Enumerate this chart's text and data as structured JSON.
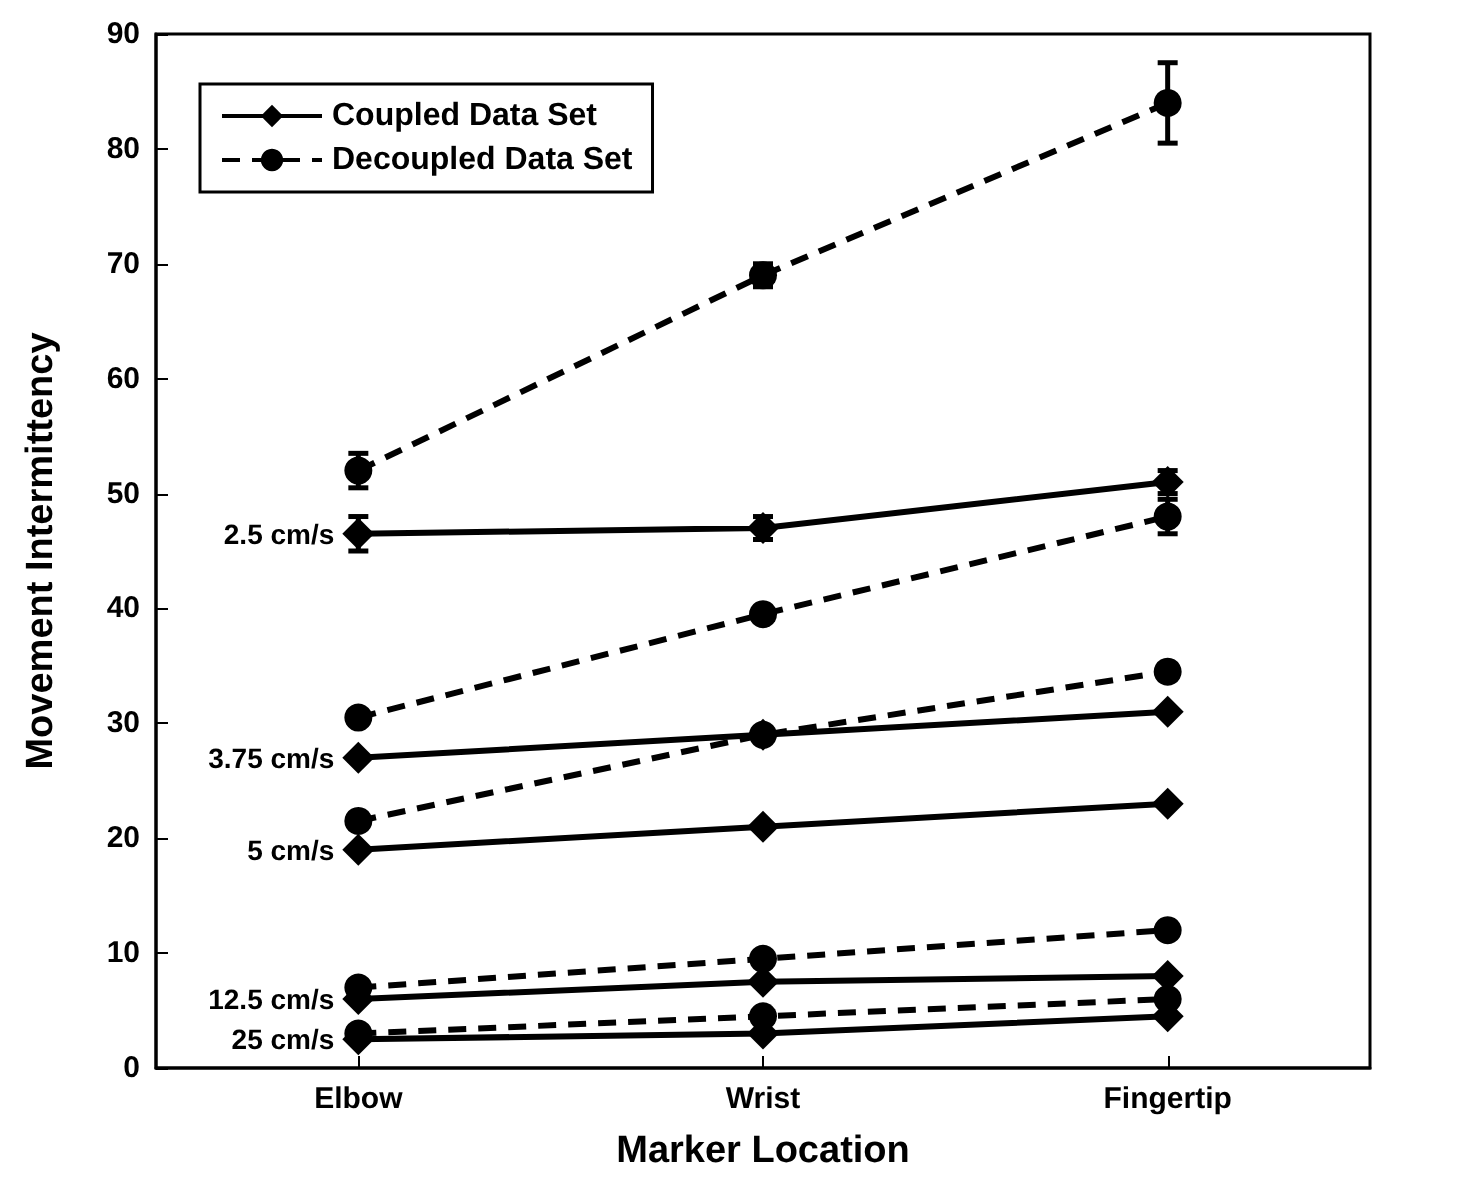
{
  "chart_data": {
    "type": "line",
    "xlabel": "Marker Location",
    "ylabel": "Movement Intermittency",
    "categories": [
      "Elbow",
      "Wrist",
      "Fingertip"
    ],
    "ylim": [
      0,
      90
    ],
    "yticks": [
      0,
      10,
      20,
      30,
      40,
      50,
      60,
      70,
      80,
      90
    ],
    "grid": false,
    "legend": "top left",
    "series": [
      {
        "name": "Coupled Data Set",
        "color": "#000000",
        "marker": "diamond",
        "line_style": "solid",
        "values": [
          46.5,
          47,
          51
        ],
        "errors": [
          1.5,
          1,
          1
        ]
      },
      {
        "name": "Decoupled Data Set",
        "color": "#000000",
        "marker": "circle",
        "line_style": "dashed",
        "values": [
          52,
          69,
          84
        ],
        "errors": [
          1.5,
          1,
          3.5
        ]
      },
      {
        "color": "#000000",
        "marker": "diamond",
        "line_style": "solid",
        "values": [
          27,
          29,
          31
        ]
      },
      {
        "color": "#000000",
        "marker": "circle",
        "line_style": "dashed",
        "values": [
          30.5,
          39.5,
          48
        ],
        "errors": [
          null,
          null,
          1.5
        ]
      },
      {
        "color": "#000000",
        "marker": "diamond",
        "line_style": "solid",
        "values": [
          19,
          21,
          23
        ]
      },
      {
        "color": "#000000",
        "marker": "circle",
        "line_style": "dashed",
        "values": [
          21.5,
          29,
          34.5
        ]
      },
      {
        "color": "#000000",
        "marker": "diamond",
        "line_style": "solid",
        "values": [
          6,
          7.5,
          8
        ]
      },
      {
        "color": "#000000",
        "marker": "circle",
        "line_style": "dashed",
        "values": [
          7,
          9.5,
          12
        ]
      },
      {
        "color": "#000000",
        "marker": "diamond",
        "line_style": "solid",
        "values": [
          2.5,
          3,
          4.5
        ]
      },
      {
        "color": "#000000",
        "marker": "circle",
        "line_style": "dashed",
        "values": [
          3,
          4.5,
          6
        ]
      }
    ],
    "annotations": [
      {
        "text": "2.5 cm/s",
        "x": "Elbow",
        "y": 46.5
      },
      {
        "text": "3.75 cm/s",
        "x": "Elbow",
        "y": 27
      },
      {
        "text": "5 cm/s",
        "x": "Elbow",
        "y": 19
      },
      {
        "text": "12.5 cm/s",
        "x": "Elbow",
        "y": 6
      },
      {
        "text": "25 cm/s",
        "x": "Elbow",
        "y": 2.5
      }
    ]
  }
}
